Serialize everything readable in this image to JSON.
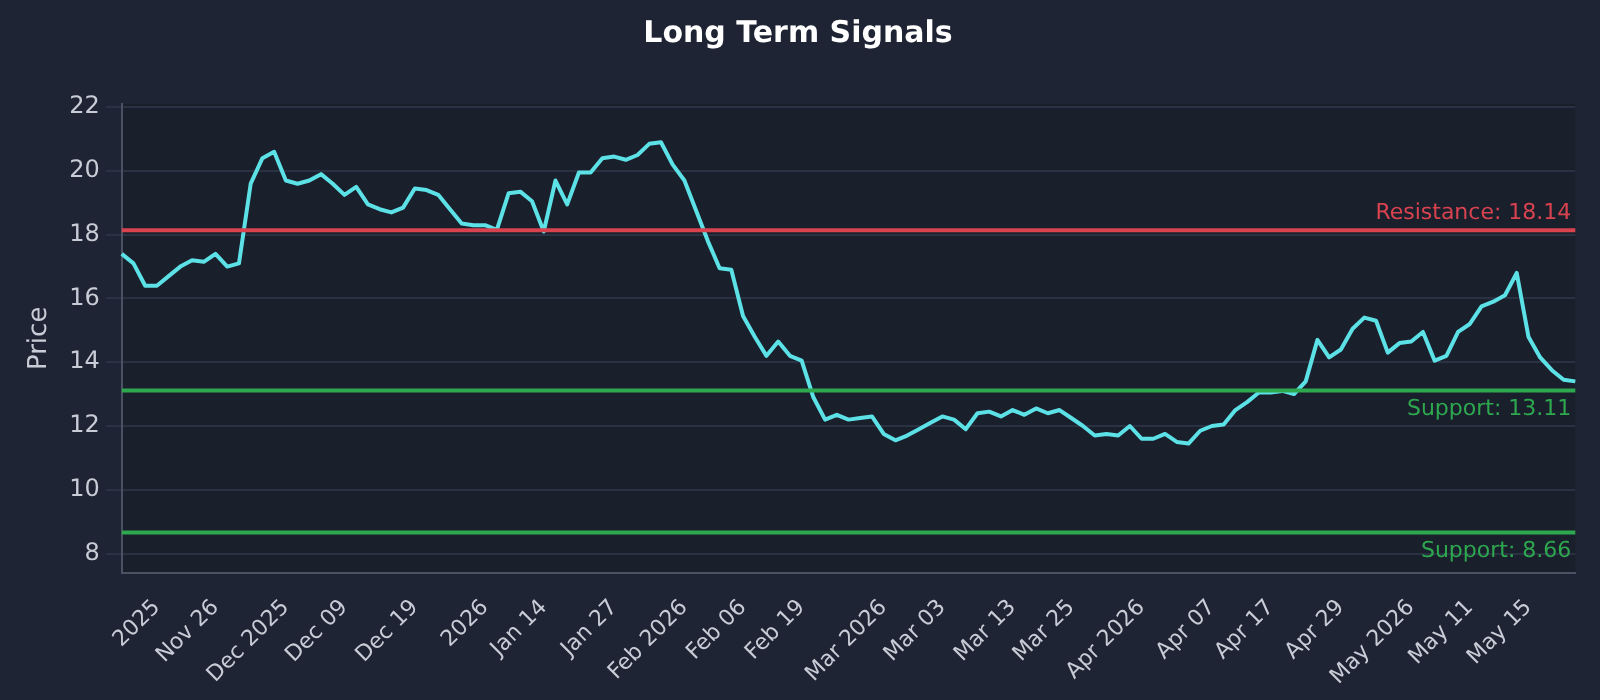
{
  "chart_data": {
    "type": "line",
    "title": "Long Term Signals",
    "ylabel": "Price",
    "categories": [
      null,
      null,
      null,
      "2025",
      null,
      null,
      null,
      null,
      "Nov 26",
      null,
      null,
      null,
      null,
      null,
      "Dec 2025",
      null,
      null,
      null,
      null,
      "Dec 09",
      null,
      null,
      null,
      null,
      null,
      "Dec 19",
      null,
      null,
      null,
      null,
      null,
      "2026",
      null,
      null,
      null,
      null,
      "Jan 14",
      null,
      null,
      null,
      null,
      null,
      "Jan 27",
      null,
      null,
      null,
      null,
      null,
      "Feb 2026",
      null,
      null,
      null,
      null,
      "Feb 06",
      null,
      null,
      null,
      null,
      "Feb 19",
      null,
      null,
      null,
      null,
      null,
      null,
      "Mar 2026",
      null,
      null,
      null,
      null,
      "Mar 03",
      null,
      null,
      null,
      null,
      null,
      "Mar 13",
      null,
      null,
      null,
      null,
      "Mar 25",
      null,
      null,
      null,
      null,
      null,
      "Apr 2026",
      null,
      null,
      null,
      null,
      null,
      "Apr 07",
      null,
      null,
      null,
      null,
      "Apr 17",
      null,
      null,
      null,
      null,
      null,
      "Apr 29",
      null,
      null,
      null,
      null,
      null,
      "May 2026",
      null,
      null,
      null,
      null,
      "May 11",
      null,
      null,
      null,
      null,
      "May 15",
      null,
      null,
      null,
      null
    ],
    "series": [
      {
        "color": "#5ce1e6",
        "values": [
          17.4,
          17.1,
          16.4,
          16.4,
          16.7,
          17.0,
          17.2,
          17.15,
          17.4,
          17.0,
          17.1,
          19.6,
          20.4,
          20.6,
          19.7,
          19.6,
          19.7,
          19.9,
          19.6,
          19.25,
          19.5,
          18.95,
          18.8,
          18.7,
          18.85,
          19.45,
          19.4,
          19.25,
          18.8,
          18.35,
          18.3,
          18.3,
          18.15,
          19.3,
          19.35,
          19.05,
          18.1,
          19.7,
          18.95,
          19.95,
          19.95,
          20.4,
          20.45,
          20.35,
          20.5,
          20.85,
          20.9,
          20.2,
          19.7,
          18.75,
          17.8,
          16.95,
          16.9,
          15.45,
          14.8,
          14.2,
          14.65,
          14.2,
          14.05,
          12.9,
          12.2,
          12.35,
          12.2,
          12.25,
          12.3,
          11.75,
          11.55,
          11.7,
          11.9,
          12.1,
          12.3,
          12.2,
          11.9,
          12.4,
          12.45,
          12.3,
          12.5,
          12.35,
          12.55,
          12.4,
          12.5,
          12.25,
          12.0,
          11.7,
          11.75,
          11.7,
          12.0,
          11.6,
          11.6,
          11.75,
          11.5,
          11.45,
          11.85,
          12.0,
          12.05,
          12.5,
          12.75,
          13.05,
          13.05,
          13.1,
          13.0,
          13.4,
          14.7,
          14.15,
          14.4,
          15.05,
          15.4,
          15.3,
          14.3,
          14.6,
          14.65,
          14.95,
          14.05,
          14.2,
          14.95,
          15.2,
          15.75,
          15.9,
          16.1,
          16.8,
          14.8,
          14.15,
          13.75,
          13.45,
          13.4
        ]
      }
    ],
    "ylim": [
      7.4,
      22.1
    ],
    "yticks": [
      8,
      10,
      12,
      14,
      16,
      18,
      20,
      22
    ],
    "grid": "y",
    "legend": false,
    "marker": "none",
    "line_style": "solid",
    "ref_lines": [
      {
        "axis": "y",
        "value": 18.14,
        "label": "Resistance: 18.14",
        "color": "#d9434f"
      },
      {
        "axis": "y",
        "value": 13.11,
        "label": "Support: 13.11",
        "color": "#2ea84f"
      },
      {
        "axis": "y",
        "value": 8.66,
        "label": "Support: 8.66",
        "color": "#2ea84f"
      }
    ]
  }
}
